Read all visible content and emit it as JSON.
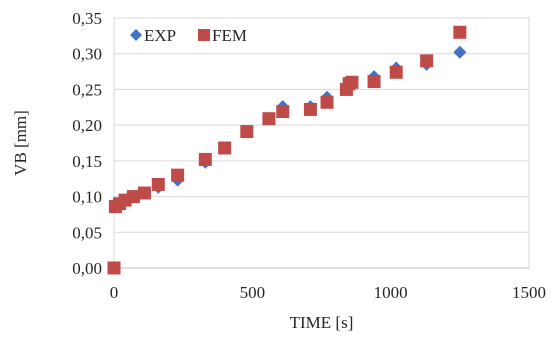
{
  "chart_data": {
    "type": "scatter",
    "title": "",
    "xlabel": "TIME [s]",
    "ylabel": "VB [mm]",
    "xlim": [
      0,
      1500
    ],
    "ylim": [
      0,
      0.35
    ],
    "xticks": [
      0,
      500,
      1000,
      1500
    ],
    "yticks": [
      0.0,
      0.05,
      0.1,
      0.15,
      0.2,
      0.25,
      0.3,
      0.35
    ],
    "xtick_labels": [
      "0",
      "500",
      "1000",
      "1500"
    ],
    "ytick_labels": [
      "0,00",
      "0,05",
      "0,10",
      "0,15",
      "0,20",
      "0,25",
      "0,30",
      "0,35"
    ],
    "grid": "horizontal",
    "legend": "top-left",
    "series": [
      {
        "name": "EXP",
        "marker": "diamond",
        "color": "#4472C4",
        "points": [
          [
            0,
            0.0
          ],
          [
            5,
            0.087
          ],
          [
            20,
            0.091
          ],
          [
            40,
            0.095
          ],
          [
            70,
            0.1
          ],
          [
            110,
            0.105
          ],
          [
            160,
            0.113
          ],
          [
            230,
            0.123
          ],
          [
            330,
            0.148
          ],
          [
            400,
            0.168
          ],
          [
            480,
            0.191
          ],
          [
            560,
            0.21
          ],
          [
            610,
            0.226
          ],
          [
            710,
            0.226
          ],
          [
            770,
            0.239
          ],
          [
            840,
            0.25
          ],
          [
            860,
            0.26
          ],
          [
            940,
            0.268
          ],
          [
            1020,
            0.28
          ],
          [
            1130,
            0.285
          ],
          [
            1250,
            0.302
          ]
        ]
      },
      {
        "name": "FEM",
        "marker": "square",
        "color": "#BE4B48",
        "points": [
          [
            0,
            0.0
          ],
          [
            5,
            0.086
          ],
          [
            20,
            0.09
          ],
          [
            40,
            0.095
          ],
          [
            70,
            0.1
          ],
          [
            110,
            0.105
          ],
          [
            160,
            0.117
          ],
          [
            230,
            0.13
          ],
          [
            330,
            0.152
          ],
          [
            400,
            0.168
          ],
          [
            480,
            0.191
          ],
          [
            560,
            0.209
          ],
          [
            610,
            0.219
          ],
          [
            710,
            0.222
          ],
          [
            770,
            0.232
          ],
          [
            840,
            0.25
          ],
          [
            850,
            0.258
          ],
          [
            860,
            0.26
          ],
          [
            940,
            0.261
          ],
          [
            1020,
            0.274
          ],
          [
            1130,
            0.29
          ],
          [
            1250,
            0.33
          ]
        ]
      }
    ]
  }
}
